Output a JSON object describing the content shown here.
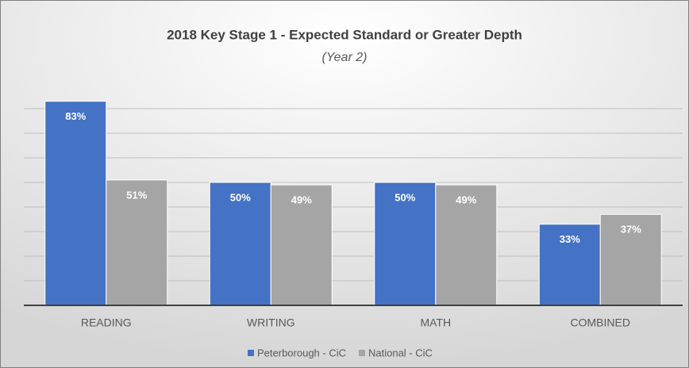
{
  "chart_data": {
    "type": "bar",
    "title": "2018 Key Stage 1 - Expected Standard or Greater Depth",
    "subtitle": "(Year 2)",
    "categories": [
      "READING",
      "WRITING",
      "MATH",
      "COMBINED"
    ],
    "series": [
      {
        "name": "Peterborough - CiC",
        "color": "#4472c4",
        "values": [
          83,
          50,
          50,
          33
        ],
        "value_labels": [
          "83%",
          "50%",
          "50%",
          "33%"
        ]
      },
      {
        "name": "National - CiC",
        "color": "#a5a5a5",
        "values": [
          51,
          49,
          49,
          37
        ],
        "value_labels": [
          "51%",
          "49%",
          "49%",
          "37%"
        ]
      }
    ],
    "ylim": [
      0,
      90
    ],
    "yticks": [
      0,
      10,
      20,
      30,
      40,
      50,
      60,
      70,
      80
    ],
    "grid": true
  }
}
